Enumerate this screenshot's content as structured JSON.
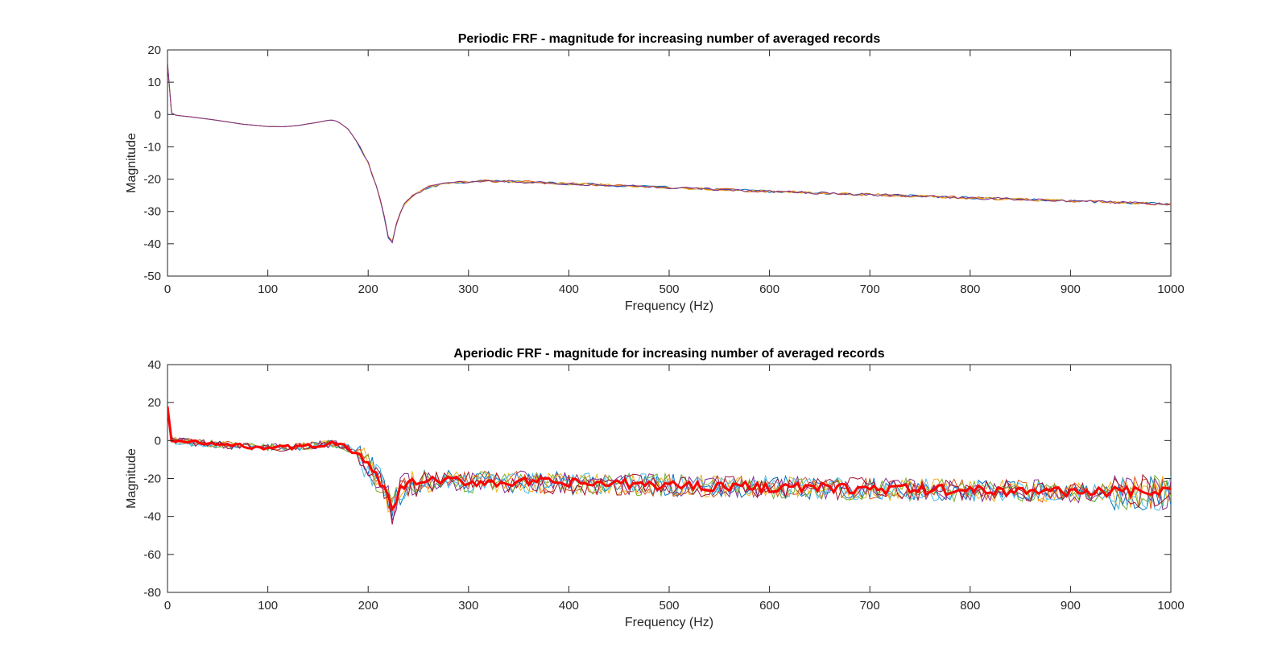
{
  "chart_data": [
    {
      "type": "line",
      "title": "Periodic FRF - magnitude for increasing number of averaged records",
      "xlabel": "Frequency (Hz)",
      "ylabel": "Magnitude",
      "xlim": [
        0,
        1000
      ],
      "ylim": [
        -50,
        20
      ],
      "xticks": [
        0,
        100,
        200,
        300,
        400,
        500,
        600,
        700,
        800,
        900,
        1000
      ],
      "yticks": [
        20,
        10,
        0,
        -10,
        -20,
        -30,
        -40,
        -50
      ],
      "grid": false,
      "legend": "none",
      "series_colors": [
        "#0072BD",
        "#D95319",
        "#EDB120",
        "#7E2F8E"
      ],
      "noise_amplitude": 0.4,
      "x": [
        0,
        1,
        3,
        5,
        10,
        25,
        50,
        75,
        100,
        115,
        130,
        150,
        160,
        165,
        170,
        180,
        190,
        200,
        210,
        215,
        220,
        223,
        226,
        230,
        235,
        245,
        260,
        280,
        300,
        320,
        350,
        400,
        450,
        500,
        550,
        600,
        650,
        700,
        750,
        800,
        850,
        900,
        950,
        1000
      ],
      "y": [
        16,
        10,
        1,
        0,
        -0.3,
        -0.8,
        -1.8,
        -3,
        -3.7,
        -3.8,
        -3.4,
        -2.4,
        -1.8,
        -1.7,
        -2.2,
        -4.5,
        -9,
        -15,
        -24,
        -30,
        -38,
        -41,
        -36,
        -32,
        -28,
        -25,
        -22.5,
        -21.2,
        -20.8,
        -20.6,
        -20.8,
        -21.4,
        -22,
        -22.6,
        -23.2,
        -23.8,
        -24.3,
        -24.8,
        -25.3,
        -25.8,
        -26.3,
        -26.8,
        -27.2,
        -27.8
      ]
    },
    {
      "type": "line",
      "title": "Aperiodic FRF - magnitude for increasing number of averaged records",
      "xlabel": "Frequency (Hz)",
      "ylabel": "Magnitude",
      "xlim": [
        0,
        1000
      ],
      "ylim": [
        -80,
        40
      ],
      "xticks": [
        0,
        100,
        200,
        300,
        400,
        500,
        600,
        700,
        800,
        900,
        1000
      ],
      "yticks": [
        40,
        20,
        0,
        -20,
        -40,
        -60,
        -80
      ],
      "grid": false,
      "legend": "none",
      "series_colors": [
        "#0072BD",
        "#D95319",
        "#EDB120",
        "#7E2F8E",
        "#77AC30",
        "#4DBEEE",
        "#A2142F"
      ],
      "highlight_color": "#FF0000",
      "noise_amplitude": 6,
      "x": [
        0,
        1,
        3,
        5,
        10,
        25,
        50,
        75,
        100,
        115,
        130,
        150,
        160,
        165,
        170,
        180,
        190,
        200,
        210,
        215,
        220,
        223,
        226,
        230,
        235,
        245,
        260,
        280,
        300,
        320,
        350,
        400,
        450,
        500,
        550,
        600,
        650,
        700,
        750,
        800,
        850,
        900,
        950,
        1000
      ],
      "y": [
        17,
        10,
        2,
        0,
        -0.5,
        -1,
        -2,
        -3,
        -3.5,
        -3.6,
        -3.4,
        -2.4,
        -1.8,
        -1.5,
        -2,
        -4,
        -8,
        -14,
        -20,
        -25,
        -30,
        -38,
        -35,
        -28,
        -24,
        -22,
        -21.5,
        -21.5,
        -21.6,
        -21.8,
        -22,
        -22.5,
        -23,
        -23.5,
        -24,
        -24.5,
        -25,
        -25.5,
        -26,
        -26.2,
        -26.5,
        -26.8,
        -27,
        -27.5
      ]
    }
  ]
}
